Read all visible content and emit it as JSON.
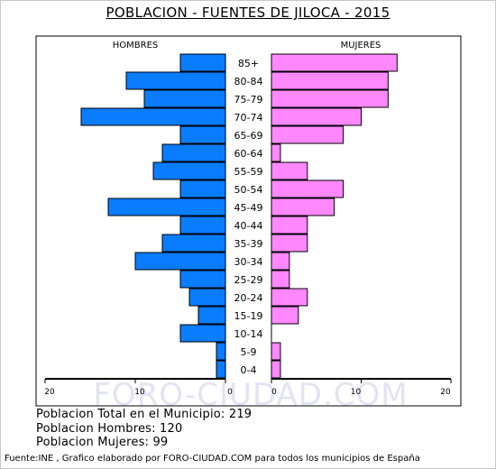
{
  "chart_data": {
    "type": "bar",
    "title": "POBLACION - FUENTES DE JILOCA - 2015",
    "categories": [
      "85+",
      "80-84",
      "75-79",
      "70-74",
      "65-69",
      "60-64",
      "55-59",
      "50-54",
      "45-49",
      "40-44",
      "35-39",
      "30-34",
      "25-29",
      "20-24",
      "15-19",
      "10-14",
      "5-9",
      "0-4"
    ],
    "series": [
      {
        "name": "HOMBRES",
        "color": "#0a7cff",
        "values": [
          5,
          11,
          9,
          16,
          5,
          7,
          8,
          5,
          13,
          5,
          7,
          10,
          5,
          4,
          3,
          5,
          1,
          1
        ]
      },
      {
        "name": "MUJERES",
        "color": "#ff88ff",
        "values": [
          14,
          13,
          13,
          10,
          8,
          1,
          4,
          8,
          7,
          4,
          4,
          2,
          2,
          4,
          3,
          0,
          1,
          1
        ]
      }
    ],
    "xlim": [
      0,
      20
    ],
    "ticks_left": [
      "20",
      "10",
      "0"
    ],
    "ticks_right": [
      "0",
      "10",
      "20"
    ],
    "watermark": "FORO-CIUDAD.COM"
  },
  "summary": {
    "total": "Poblacion Total en el Municipio: 219",
    "hombres": "Poblacion Hombres: 120",
    "mujeres": "Poblacion Mujeres: 99"
  },
  "source": "Fuente:INE , Grafico elaborado por FORO-CIUDAD.COM para todos los municipios de España"
}
